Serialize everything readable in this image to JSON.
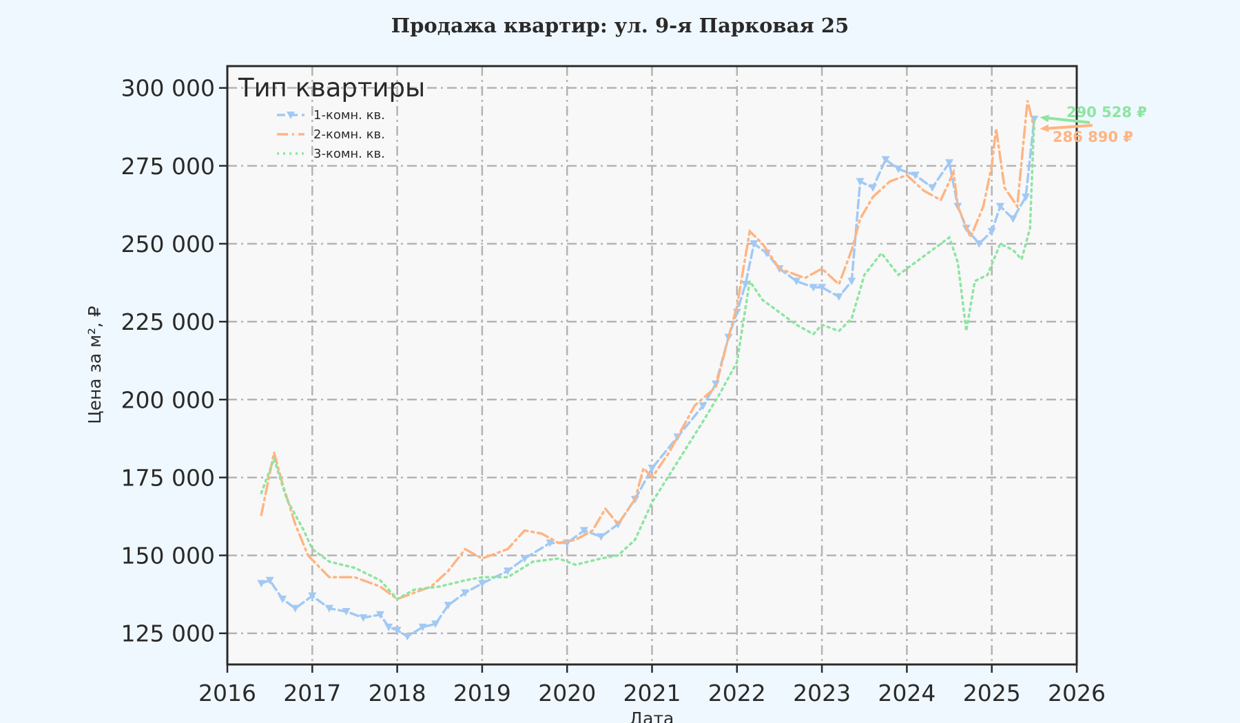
{
  "chart_data": {
    "type": "line",
    "title": "Продажа квартир: ул. 9-я Парковая 25",
    "xlabel": "Дата",
    "ylabel": "Цена за м², ₽",
    "xlim": [
      2016,
      2026
    ],
    "ylim": [
      115000,
      307000
    ],
    "x_ticks": [
      "2016",
      "2017",
      "2018",
      "2019",
      "2020",
      "2021",
      "2022",
      "2023",
      "2024",
      "2025",
      "2026"
    ],
    "y_ticks": [
      "125 000",
      "150 000",
      "175 000",
      "200 000",
      "225 000",
      "250 000",
      "275 000",
      "300 000"
    ],
    "y_tick_values": [
      125000,
      150000,
      175000,
      200000,
      225000,
      250000,
      275000,
      300000
    ],
    "grid": true,
    "legend": {
      "title": "Тип квартиры",
      "placement": "top-left"
    },
    "series": [
      {
        "name": "1-комн. кв.",
        "color": "#a1c9f4",
        "style": "dashed-triangle-markers",
        "x": [
          2016.4,
          2016.5,
          2016.65,
          2016.8,
          2017.0,
          2017.2,
          2017.4,
          2017.6,
          2017.8,
          2017.9,
          2018.0,
          2018.12,
          2018.3,
          2018.45,
          2018.6,
          2018.8,
          2019.0,
          2019.3,
          2019.5,
          2019.8,
          2020.0,
          2020.2,
          2020.4,
          2020.6,
          2020.8,
          2021.0,
          2021.3,
          2021.6,
          2021.75,
          2021.9,
          2022.0,
          2022.1,
          2022.2,
          2022.35,
          2022.5,
          2022.7,
          2022.9,
          2023.0,
          2023.2,
          2023.35,
          2023.45,
          2023.6,
          2023.75,
          2023.9,
          2024.1,
          2024.3,
          2024.5,
          2024.6,
          2024.7,
          2024.85,
          2025.0,
          2025.1,
          2025.25,
          2025.4,
          2025.5
        ],
        "values": [
          141000,
          142000,
          136000,
          133000,
          137000,
          133000,
          132000,
          130000,
          131000,
          127000,
          126000,
          124000,
          127000,
          128000,
          134000,
          138000,
          141000,
          145000,
          149000,
          154000,
          154000,
          158000,
          156000,
          160000,
          168000,
          178000,
          188000,
          198000,
          205000,
          220000,
          228000,
          237000,
          250000,
          247000,
          242000,
          238000,
          236000,
          236000,
          233000,
          238000,
          270000,
          268000,
          277000,
          274000,
          272000,
          268000,
          276000,
          262000,
          255000,
          250000,
          254000,
          262000,
          258000,
          265000,
          290000
        ]
      },
      {
        "name": "2-комн. кв.",
        "color": "#ffb482",
        "style": "dashdot",
        "x": [
          2016.4,
          2016.55,
          2016.65,
          2016.8,
          2016.95,
          2017.2,
          2017.5,
          2017.8,
          2018.0,
          2018.2,
          2018.4,
          2018.6,
          2018.8,
          2019.0,
          2019.3,
          2019.5,
          2019.7,
          2019.9,
          2020.1,
          2020.3,
          2020.45,
          2020.6,
          2020.8,
          2020.9,
          2021.0,
          2021.2,
          2021.5,
          2021.75,
          2021.9,
          2022.0,
          2022.15,
          2022.3,
          2022.5,
          2022.8,
          2023.0,
          2023.2,
          2023.35,
          2023.45,
          2023.6,
          2023.8,
          2024.0,
          2024.2,
          2024.4,
          2024.55,
          2024.6,
          2024.75,
          2024.9,
          2025.0,
          2025.05,
          2025.15,
          2025.3,
          2025.42,
          2025.5
        ],
        "values": [
          163000,
          183000,
          173000,
          160000,
          150000,
          143000,
          143000,
          140000,
          136000,
          138000,
          140000,
          145000,
          152000,
          149000,
          152000,
          158000,
          157000,
          154000,
          155000,
          158000,
          165000,
          160000,
          168000,
          178000,
          175000,
          183000,
          198000,
          204000,
          220000,
          230000,
          254000,
          250000,
          242000,
          239000,
          242000,
          237000,
          248000,
          258000,
          265000,
          270000,
          272000,
          267000,
          264000,
          273000,
          262000,
          252000,
          262000,
          275000,
          287000,
          268000,
          262000,
          296000,
          286890
        ]
      },
      {
        "name": "3-комн. кв.",
        "color": "#8de5a1",
        "style": "dotted",
        "x": [
          2016.4,
          2016.55,
          2016.7,
          2016.9,
          2017.0,
          2017.2,
          2017.5,
          2017.8,
          2018.0,
          2018.2,
          2018.5,
          2018.8,
          2019.0,
          2019.3,
          2019.6,
          2019.9,
          2020.1,
          2020.4,
          2020.6,
          2020.8,
          2021.0,
          2021.3,
          2021.6,
          2021.8,
          2022.0,
          2022.15,
          2022.3,
          2022.5,
          2022.7,
          2022.9,
          2023.0,
          2023.2,
          2023.35,
          2023.5,
          2023.7,
          2023.9,
          2024.1,
          2024.3,
          2024.5,
          2024.6,
          2024.7,
          2024.8,
          2024.95,
          2025.1,
          2025.25,
          2025.35,
          2025.45,
          2025.5
        ],
        "values": [
          170000,
          181000,
          168000,
          158000,
          152000,
          148000,
          146000,
          142000,
          136000,
          139000,
          140000,
          142000,
          143000,
          143000,
          148000,
          149000,
          147000,
          149000,
          150000,
          155000,
          167000,
          180000,
          193000,
          202000,
          212000,
          238000,
          232000,
          228000,
          224000,
          221000,
          224000,
          222000,
          226000,
          240000,
          247000,
          240000,
          244000,
          248000,
          252000,
          244000,
          222000,
          238000,
          240000,
          250000,
          248000,
          245000,
          255000,
          290528
        ]
      }
    ],
    "annotations": [
      {
        "text": "290 528 ₽",
        "series": "3-комн. кв.",
        "color": "#8de5a1"
      },
      {
        "text": "286 890 ₽",
        "series": "2-комн. кв.",
        "color": "#ffb482"
      }
    ]
  }
}
